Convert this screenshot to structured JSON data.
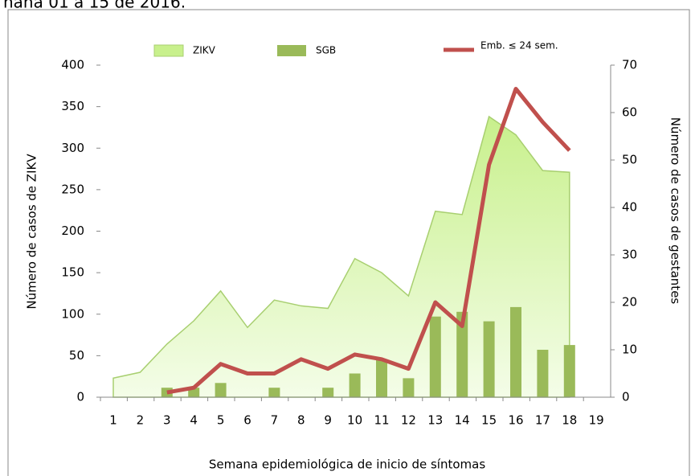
{
  "chart_data": {
    "type": "combo",
    "title": "nana 01 a 15 de 2016.",
    "x_label": "Semana epidemiológica de inicio de síntomas",
    "y_label": "Número de casos de ZIKV",
    "y2_label": "Número de casos de gestantes",
    "categories": [
      "1",
      "2",
      "3",
      "4",
      "5",
      "6",
      "7",
      "8",
      "9",
      "10",
      "11",
      "12",
      "13",
      "14",
      "15",
      "16",
      "17",
      "18",
      "19"
    ],
    "series": [
      {
        "name": "ZIKV",
        "type": "area",
        "color": "#c8f08c",
        "axis": "y",
        "values": [
          23,
          30,
          64,
          92,
          128,
          84,
          117,
          110,
          107,
          167,
          150,
          122,
          224,
          220,
          338,
          316,
          273,
          271,
          null
        ]
      },
      {
        "name": "SGB",
        "type": "bar",
        "color": "#9aba59",
        "axis": "y2",
        "values": [
          null,
          null,
          2,
          2,
          3,
          null,
          2,
          null,
          2,
          5,
          8,
          4,
          17,
          18,
          16,
          19,
          10,
          11,
          null
        ]
      },
      {
        "name": "Emb. ≤ 24 sem.",
        "type": "line",
        "color": "#c0504d",
        "axis": "y2",
        "values": [
          null,
          null,
          1,
          2,
          7,
          5,
          5,
          8,
          6,
          9,
          8,
          6,
          20,
          15,
          49,
          65,
          58,
          52,
          null
        ]
      }
    ],
    "ylim": [
      0,
      400
    ],
    "yticks": [
      0,
      50,
      100,
      150,
      200,
      250,
      300,
      350,
      400
    ],
    "y2lim": [
      0,
      70
    ],
    "y2ticks": [
      0,
      10,
      20,
      30,
      40,
      50,
      60,
      70
    ]
  }
}
